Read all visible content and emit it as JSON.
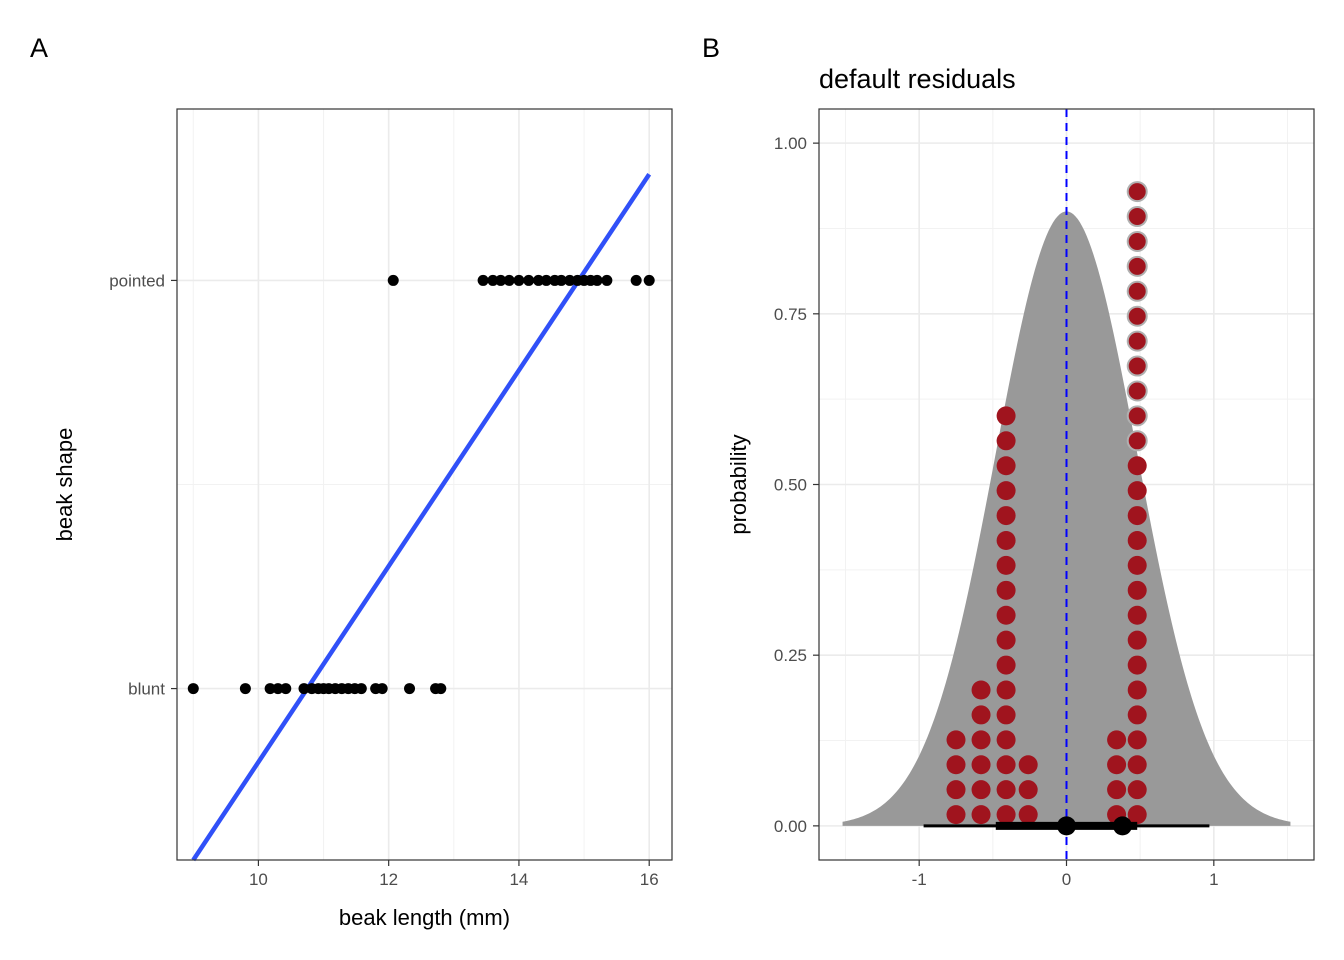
{
  "chart_data": [
    {
      "panel_tag": "A",
      "type": "scatter",
      "title": "",
      "xlabel": "beak length (mm)",
      "ylabel": "beak shape",
      "xlim": [
        8.75,
        16.35
      ],
      "ylim": [
        -0.42,
        1.42
      ],
      "x_ticks": [
        10,
        12,
        14,
        16
      ],
      "y_categories": [
        "blunt",
        "pointed"
      ],
      "grid": true,
      "points_pointed": [
        12.07,
        13.45,
        13.6,
        13.72,
        13.85,
        14.0,
        14.15,
        14.3,
        14.42,
        14.55,
        14.65,
        14.78,
        14.9,
        15.0,
        15.1,
        15.2,
        15.35,
        15.8,
        16.0
      ],
      "points_blunt": [
        9.0,
        9.8,
        10.18,
        10.3,
        10.42,
        10.7,
        10.82,
        10.92,
        11.0,
        11.08,
        11.18,
        11.28,
        11.38,
        11.48,
        11.58,
        11.8,
        11.9,
        12.32,
        12.72,
        12.8
      ],
      "fit_line": {
        "x": [
          9.0,
          16.0
        ],
        "y": [
          -0.42,
          1.26
        ],
        "color": "#3050f8"
      }
    },
    {
      "panel_tag": "B",
      "type": "area",
      "title": "default residuals",
      "xlabel": "",
      "ylabel": "probability",
      "xlim": [
        -1.68,
        1.68
      ],
      "ylim": [
        -0.05,
        1.05
      ],
      "x_ticks": [
        -1,
        0,
        1
      ],
      "y_ticks": [
        0.0,
        0.25,
        0.5,
        0.75,
        1.0
      ],
      "y_tick_labels": [
        "0.00",
        "0.25",
        "0.50",
        "0.75",
        "1.00"
      ],
      "grid": true,
      "density": {
        "mean": 0,
        "sd": 0.48,
        "peak": 0.9,
        "x_range": [
          -1.52,
          1.52
        ],
        "color": "#999999"
      },
      "reference_line": {
        "x": 0,
        "color": "#0000ff",
        "style": "dashed"
      },
      "dot_stacks": [
        {
          "x": -0.75,
          "top": 0.125
        },
        {
          "x": -0.58,
          "top": 0.197
        },
        {
          "x": -0.41,
          "top": 0.59
        },
        {
          "x": -0.26,
          "top": 0.088
        },
        {
          "x": 0.34,
          "top": 0.125
        },
        {
          "x": 0.48,
          "top": 0.945
        }
      ],
      "dot_step": 0.0365,
      "dot_color": "#a0141e",
      "interval": {
        "point": 0,
        "thin": [
          -0.97,
          0.97
        ],
        "thick": [
          -0.48,
          0.48
        ]
      },
      "mean_point": 0.38
    }
  ]
}
